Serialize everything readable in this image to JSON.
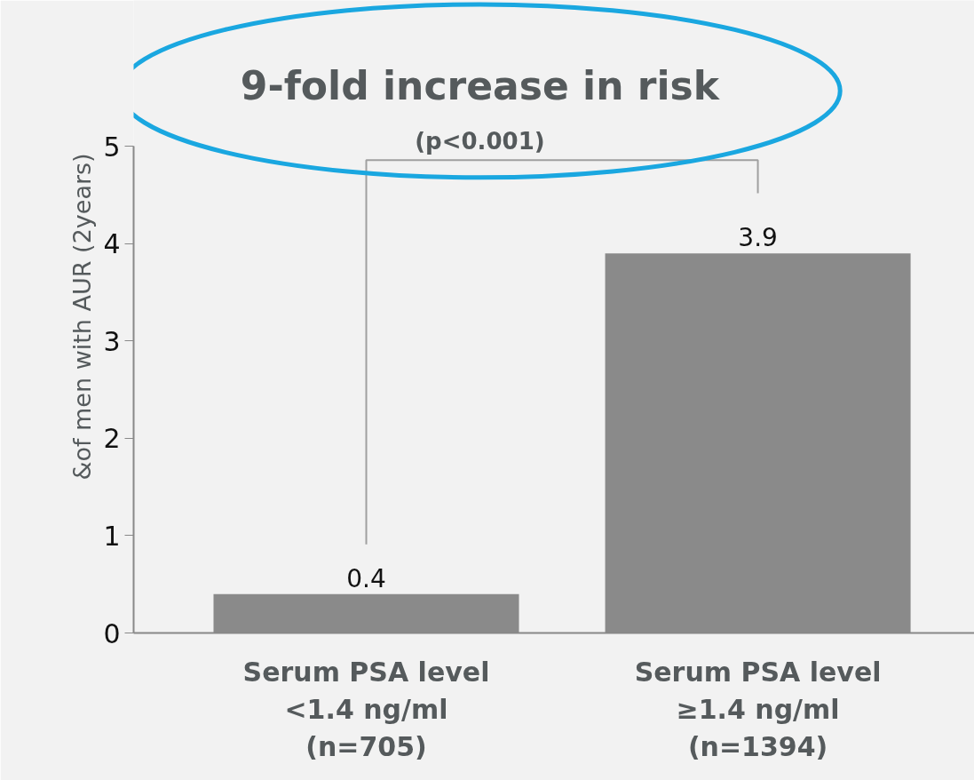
{
  "chart_data": {
    "type": "bar",
    "categories": [
      "Serum PSA level\n<1.4 ng/ml\n(n=705)",
      "Serum PSA level\n≥1.4 ng/ml\n(n=1394)"
    ],
    "values": [
      0.4,
      3.9
    ],
    "color": "#8a8a8a",
    "ylabel": "&of men with AUR (2years)",
    "ylim": [
      0,
      5
    ],
    "yticks": [
      0,
      1,
      2,
      3,
      4,
      5
    ],
    "data_labels": true,
    "grid": false,
    "annotations": [
      "9-fold increase in risk",
      "(p<0.001)"
    ]
  }
}
